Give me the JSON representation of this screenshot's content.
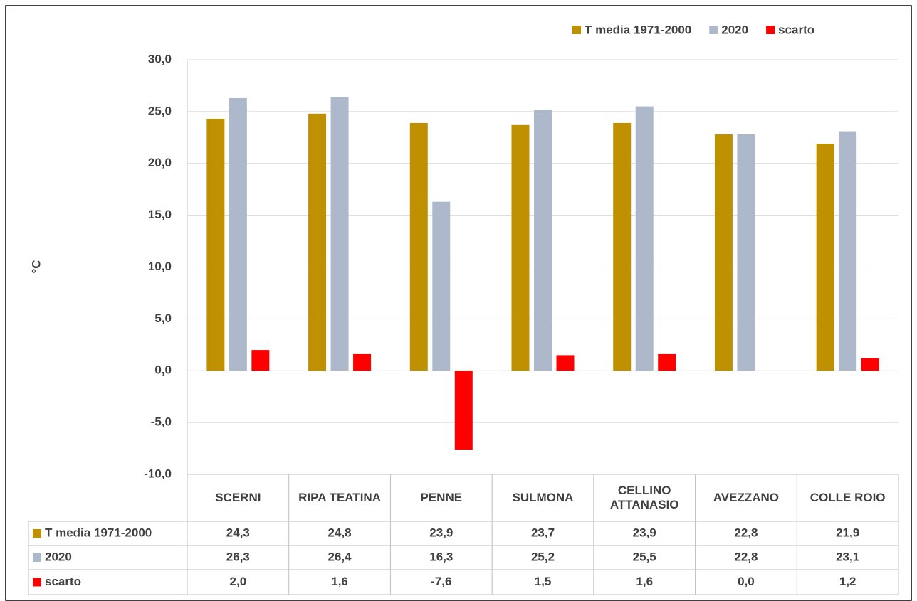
{
  "chart_data": {
    "type": "bar",
    "y_label": "°C",
    "categories": [
      "SCERNI",
      "RIPA TEATINA",
      "PENNE",
      "SULMONA",
      "CELLINO ATTANASIO",
      "AVEZZANO",
      "COLLE ROIO"
    ],
    "series": [
      {
        "name": "T media 1971-2000",
        "color": "#bf9000",
        "values": [
          24.3,
          24.8,
          23.9,
          23.7,
          23.9,
          22.8,
          21.9
        ],
        "value_labels": [
          "24,3",
          "24,8",
          "23,9",
          "23,7",
          "23,9",
          "22,8",
          "21,9"
        ]
      },
      {
        "name": "2020",
        "color": "#adb9ca",
        "values": [
          26.3,
          26.4,
          16.3,
          25.2,
          25.5,
          22.8,
          23.1
        ],
        "value_labels": [
          "26,3",
          "26,4",
          "16,3",
          "25,2",
          "25,5",
          "22,8",
          "23,1"
        ]
      },
      {
        "name": "scarto",
        "color": "#ff0000",
        "values": [
          2.0,
          1.6,
          -7.6,
          1.5,
          1.6,
          0.0,
          1.2
        ],
        "value_labels": [
          "2,0",
          "1,6",
          "-7,6",
          "1,5",
          "1,6",
          "0,0",
          "1,2"
        ]
      }
    ],
    "ylim": [
      -10,
      30
    ],
    "yticks": [
      {
        "value": -10,
        "label": "-10,0"
      },
      {
        "value": -5,
        "label": "-5,0"
      },
      {
        "value": 0,
        "label": "0,0"
      },
      {
        "value": 5,
        "label": "5,0"
      },
      {
        "value": 10,
        "label": "10,0"
      },
      {
        "value": 15,
        "label": "15,0"
      },
      {
        "value": 20,
        "label": "20,0"
      },
      {
        "value": 25,
        "label": "25,0"
      },
      {
        "value": 30,
        "label": "30,0"
      }
    ],
    "grid": true,
    "legend": "top-right"
  }
}
